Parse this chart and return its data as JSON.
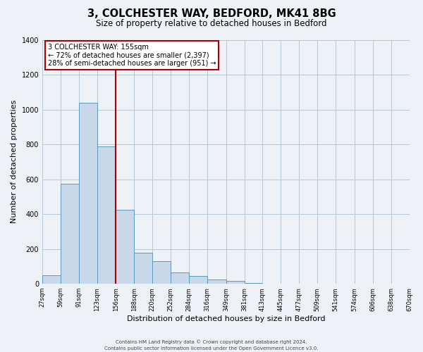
{
  "title": "3, COLCHESTER WAY, BEDFORD, MK41 8BG",
  "subtitle": "Size of property relative to detached houses in Bedford",
  "xlabel": "Distribution of detached houses by size in Bedford",
  "ylabel": "Number of detached properties",
  "bar_color": "#c8d8e8",
  "bar_edge_color": "#5b9abd",
  "bin_edges": [
    27,
    59,
    91,
    123,
    156,
    188,
    220,
    252,
    284,
    316,
    349,
    381,
    413,
    445,
    477,
    509,
    541,
    574,
    606,
    638,
    670
  ],
  "bar_heights": [
    50,
    575,
    1040,
    790,
    425,
    180,
    130,
    65,
    45,
    25,
    15,
    5,
    0,
    0,
    0,
    0,
    0,
    0,
    0,
    0
  ],
  "vline_x": 155,
  "vline_color": "#aa0000",
  "ylim": [
    0,
    1400
  ],
  "yticks": [
    0,
    200,
    400,
    600,
    800,
    1000,
    1200,
    1400
  ],
  "xtick_labels": [
    "27sqm",
    "59sqm",
    "91sqm",
    "123sqm",
    "156sqm",
    "188sqm",
    "220sqm",
    "252sqm",
    "284sqm",
    "316sqm",
    "349sqm",
    "381sqm",
    "413sqm",
    "445sqm",
    "477sqm",
    "509sqm",
    "541sqm",
    "574sqm",
    "606sqm",
    "638sqm",
    "670sqm"
  ],
  "annotation_title": "3 COLCHESTER WAY: 155sqm",
  "annotation_line2": "← 72% of detached houses are smaller (2,397)",
  "annotation_line3": "28% of semi-detached houses are larger (951) →",
  "annotation_box_color": "#ffffff",
  "annotation_box_edge": "#aa0000",
  "footer1": "Contains HM Land Registry data © Crown copyright and database right 2024.",
  "footer2": "Contains public sector information licensed under the Open Government Licence v3.0.",
  "bg_color": "#eef2f7",
  "grid_color": "#b0c0d0",
  "title_fontsize": 10.5,
  "subtitle_fontsize": 8.5,
  "ylabel_fontsize": 8,
  "xlabel_fontsize": 8,
  "tick_fontsize": 6,
  "footer_fontsize": 5,
  "annot_fontsize": 7
}
